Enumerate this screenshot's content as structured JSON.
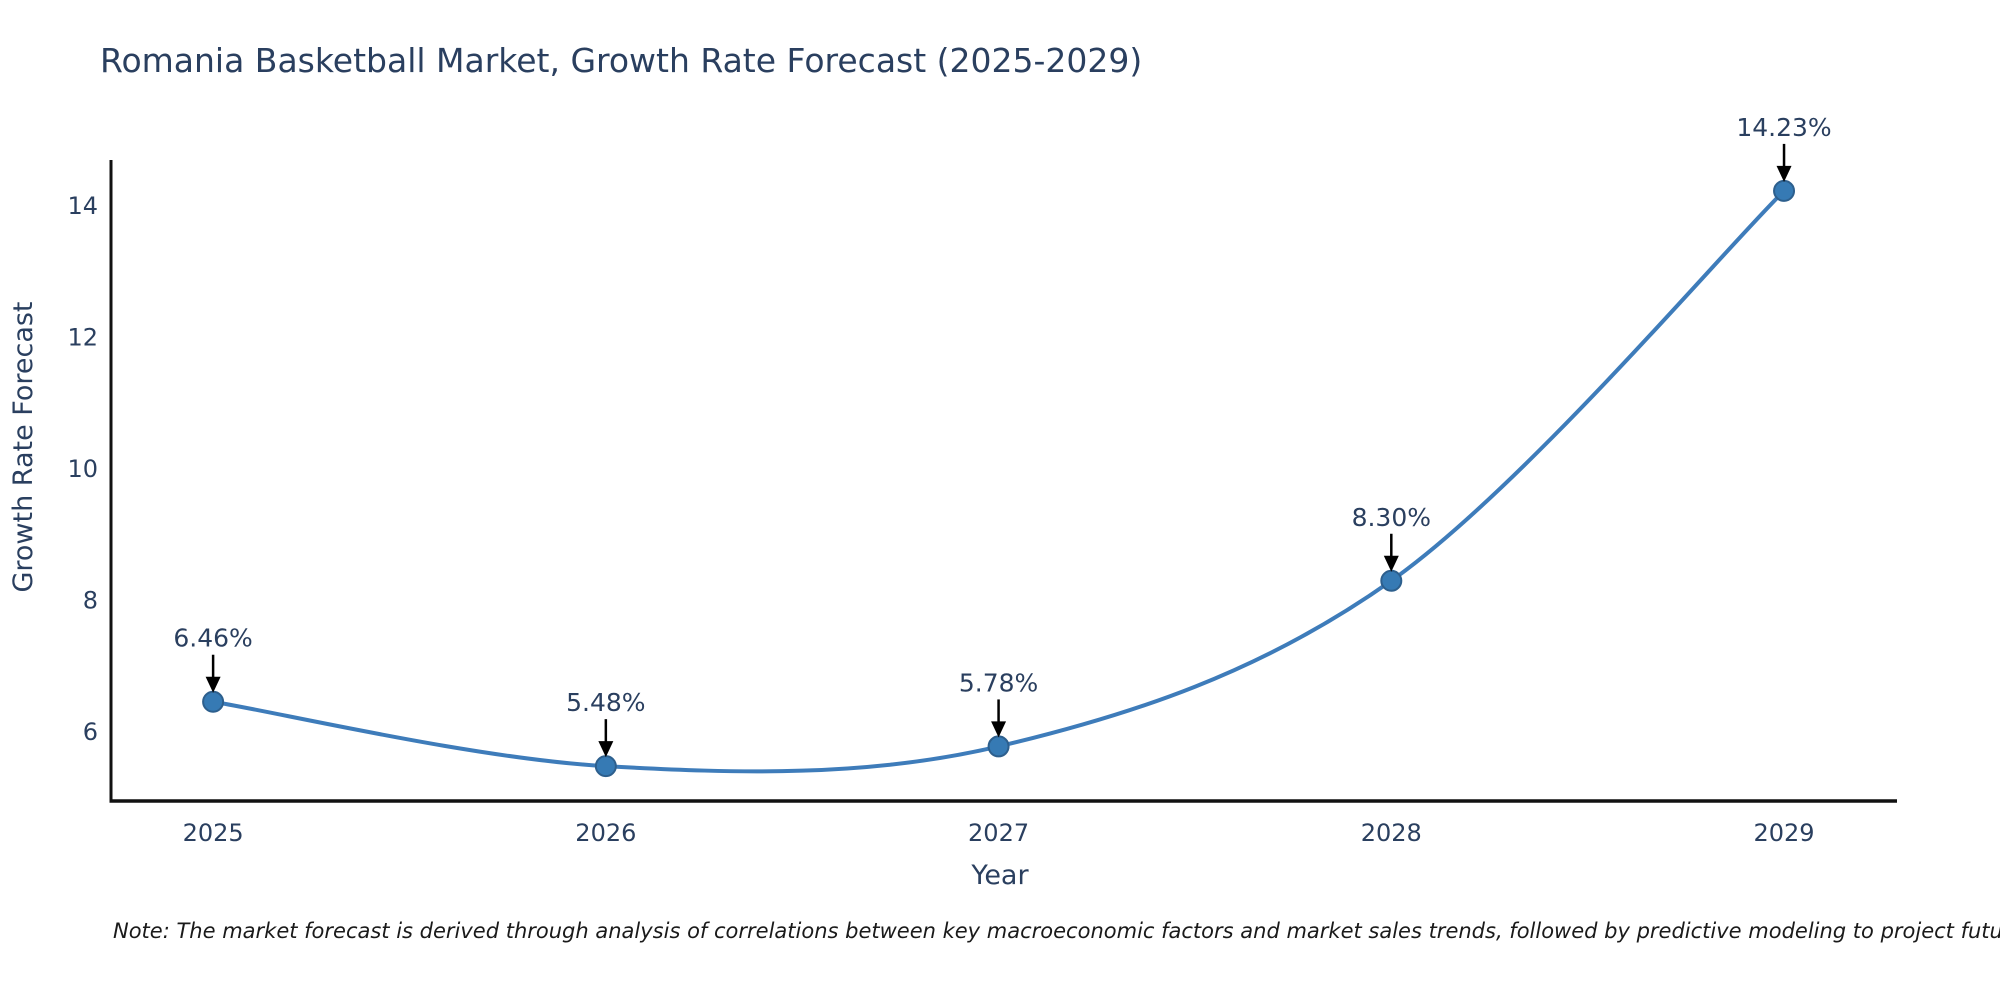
{
  "chart_data": {
    "type": "line",
    "title": "Romania Basketball Market, Growth Rate Forecast (2025-2029)",
    "xlabel": "Year",
    "ylabel": "Growth Rate Forecast",
    "x": [
      2025,
      2026,
      2027,
      2028,
      2029
    ],
    "y": [
      6.46,
      5.48,
      5.78,
      8.3,
      14.23
    ],
    "point_labels": [
      "6.46%",
      "5.48%",
      "5.78%",
      "8.30%",
      "14.23%"
    ],
    "xticks": [
      "2025",
      "2026",
      "2027",
      "2028",
      "2029"
    ],
    "yticks": [
      6,
      8,
      10,
      12,
      14
    ],
    "xlim": [
      2024.74,
      2029.28
    ],
    "ylim": [
      4.95,
      14.7
    ],
    "line_shape": "spline",
    "grid": false,
    "legend": false,
    "colors": {
      "line": "#3e7cba",
      "marker_fill": "#367ab4",
      "marker_edge": "#2d5f8d",
      "axis_line": "#111111",
      "text": "#2a3f5f",
      "arrow": "#000000",
      "note_text": "#1a1a1a"
    },
    "note": "Note: The market forecast is derived through analysis of correlations between key macroeconomic factors and market sales trends, followed by predictive modeling to project future sales."
  }
}
